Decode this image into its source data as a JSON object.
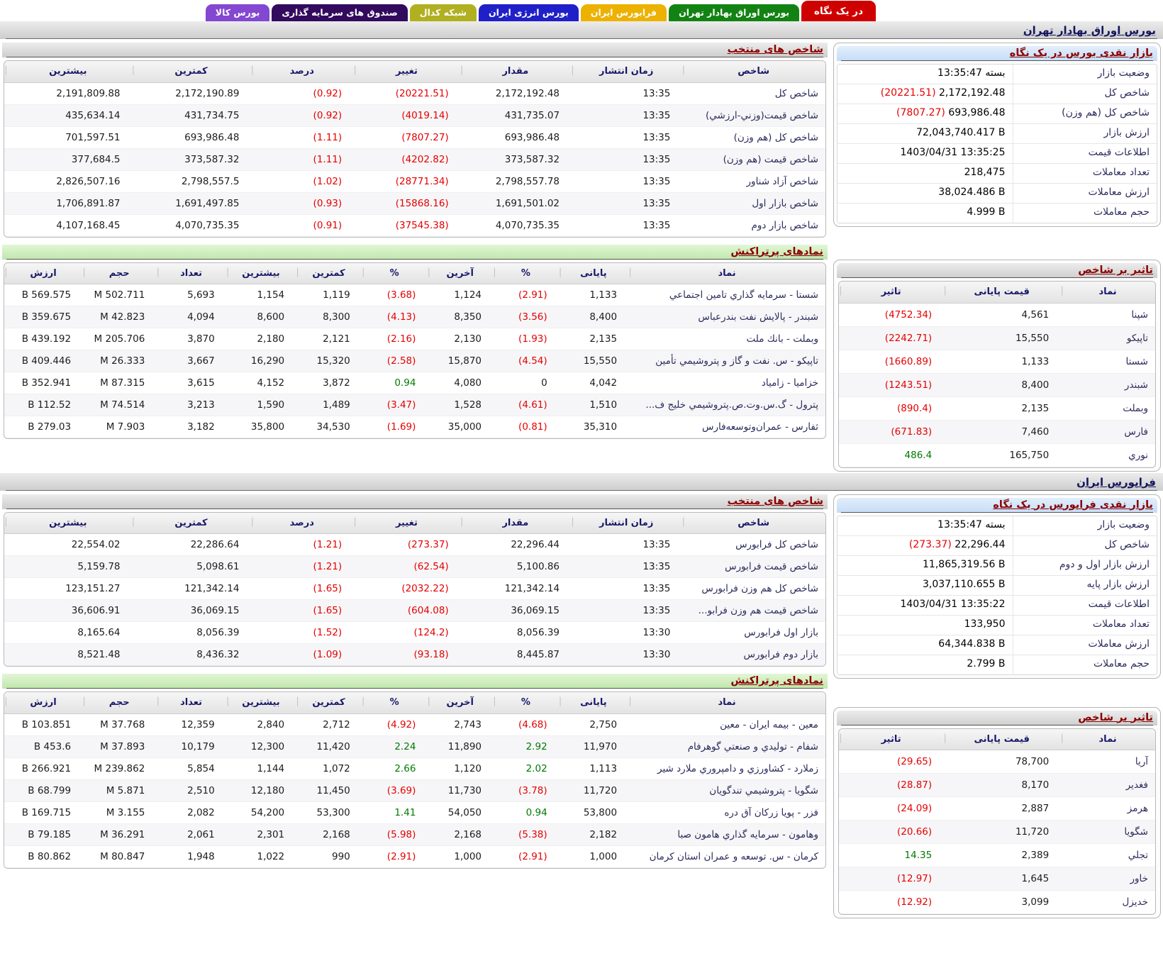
{
  "tabs": [
    {
      "label": "در یک نگاه",
      "color": "#cf0000",
      "active": true
    },
    {
      "label": "بورس اوراق بهادار تهران",
      "color": "#128312",
      "active": false
    },
    {
      "label": "فرابورس ایران",
      "color": "#edb100",
      "active": false
    },
    {
      "label": "بورس انرژی ایران",
      "color": "#2020c8",
      "active": false
    },
    {
      "label": "شبکه کدال",
      "color": "#b0b021",
      "active": false
    },
    {
      "label": "صندوق های سرمایه گذاری",
      "color": "#320a5e",
      "active": false
    },
    {
      "label": "بورس کالا",
      "color": "#8347d1",
      "active": false
    }
  ],
  "colors": {
    "negative": "#e60000",
    "positive": "#007a00",
    "panel_title": "#8b0000"
  },
  "sections": {
    "tse": {
      "title": "بورس اوراق بهادار تهران",
      "glance": {
        "title": "بازار نقدی بورس در یک نگاه",
        "rows": [
          {
            "label": "وضعیت بازار",
            "value": "بسته 13:35:47"
          },
          {
            "label": "شاخص کل",
            "value": "2,172,192.48",
            "extra": "(20221.51)",
            "extra_class": "neg"
          },
          {
            "label": "شاخص کل (هم وزن)",
            "value": "693,986.48",
            "extra": "(7807.27)",
            "extra_class": "neg"
          },
          {
            "label": "ارزش بازار",
            "value": "72,043,740.417 B"
          },
          {
            "label": "اطلاعات قیمت",
            "value": "1403/04/31 13:35:25"
          },
          {
            "label": "تعداد معاملات",
            "value": "218,475"
          },
          {
            "label": "ارزش معاملات",
            "value": "38,024.486 B"
          },
          {
            "label": "حجم معاملات",
            "value": "4.999 B"
          }
        ]
      },
      "indices": {
        "title": "شاخص های منتخب",
        "headers": [
          "شاخص",
          "زمان انتشار",
          "مقدار",
          "تغییر",
          "درصد",
          "کمترین",
          "بیشترین"
        ],
        "rows": [
          [
            "شاخص کل",
            "13:35",
            "2,172,192.48",
            {
              "t": "(20221.51)",
              "c": "neg"
            },
            {
              "t": "(0.92)",
              "c": "neg"
            },
            "2,172,190.89",
            "2,191,809.88"
          ],
          [
            "شاخص قیمت(وزني-ارزشي)",
            "13:35",
            "431,735.07",
            {
              "t": "(4019.14)",
              "c": "neg"
            },
            {
              "t": "(0.92)",
              "c": "neg"
            },
            "431,734.75",
            "435,634.14"
          ],
          [
            "شاخص کل (هم وزن)",
            "13:35",
            "693,986.48",
            {
              "t": "(7807.27)",
              "c": "neg"
            },
            {
              "t": "(1.11)",
              "c": "neg"
            },
            "693,986.48",
            "701,597.51"
          ],
          [
            "شاخص قیمت (هم وزن)",
            "13:35",
            "373,587.32",
            {
              "t": "(4202.82)",
              "c": "neg"
            },
            {
              "t": "(1.11)",
              "c": "neg"
            },
            "373,587.32",
            "377,684.5"
          ],
          [
            "شاخص آزاد شناور",
            "13:35",
            "2,798,557.78",
            {
              "t": "(28771.34)",
              "c": "neg"
            },
            {
              "t": "(1.02)",
              "c": "neg"
            },
            "2,798,557.5",
            "2,826,507.16"
          ],
          [
            "شاخص بازار اول",
            "13:35",
            "1,691,501.02",
            {
              "t": "(15868.16)",
              "c": "neg"
            },
            {
              "t": "(0.93)",
              "c": "neg"
            },
            "1,691,497.85",
            "1,706,891.87"
          ],
          [
            "شاخص بازار دوم",
            "13:35",
            "4,070,735.35",
            {
              "t": "(37545.38)",
              "c": "neg"
            },
            {
              "t": "(0.91)",
              "c": "neg"
            },
            "4,070,735.35",
            "4,107,168.45"
          ]
        ]
      },
      "active": {
        "title": "نمادهای پرتراکنش",
        "headers": [
          "نماد",
          "پایانی",
          "%",
          "آخرین",
          "%",
          "کمترین",
          "بیشترین",
          "تعداد",
          "حجم",
          "ارزش"
        ],
        "rows": [
          [
            "شستا - سرمايه گذاري تامين اجتماعي",
            "1,133",
            {
              "t": "(2.91)",
              "c": "neg"
            },
            "1,124",
            {
              "t": "(3.68)",
              "c": "neg"
            },
            "1,119",
            "1,154",
            "5,693",
            "502.711 M",
            "569.575 B"
          ],
          [
            "شبندر - پالايش نفت بندرعباس",
            "8,400",
            {
              "t": "(3.56)",
              "c": "neg"
            },
            "8,350",
            {
              "t": "(4.13)",
              "c": "neg"
            },
            "8,300",
            "8,600",
            "4,094",
            "42.823 M",
            "359.675 B"
          ],
          [
            "وبملت - بانك ملت",
            "2,135",
            {
              "t": "(1.93)",
              "c": "neg"
            },
            "2,130",
            {
              "t": "(2.16)",
              "c": "neg"
            },
            "2,121",
            "2,180",
            "3,870",
            "205.706 M",
            "439.192 B"
          ],
          [
            "تاپیکو - س. نفت و گاز و پتروشيمي تأمين",
            "15,550",
            {
              "t": "(4.54)",
              "c": "neg"
            },
            "15,870",
            {
              "t": "(2.58)",
              "c": "neg"
            },
            "15,320",
            "16,290",
            "3,667",
            "26.333 M",
            "409.446 B"
          ],
          [
            "خزامیا - زامياد",
            "4,042",
            "0",
            "4,080",
            {
              "t": "0.94",
              "c": "pos"
            },
            "3,872",
            "4,152",
            "3,615",
            "87.315 M",
            "352.941 B"
          ],
          [
            "پترول - گ.س.وت.ص.پتروشيمي خليج ف...",
            "1,510",
            {
              "t": "(4.61)",
              "c": "neg"
            },
            "1,528",
            {
              "t": "(3.47)",
              "c": "neg"
            },
            "1,489",
            "1,590",
            "3,213",
            "74.514 M",
            "112.52 B"
          ],
          [
            "ثفارس - عمران‌وتوسعه‌فارس",
            "35,310",
            {
              "t": "(0.81)",
              "c": "neg"
            },
            "35,000",
            {
              "t": "(1.69)",
              "c": "neg"
            },
            "34,530",
            "35,800",
            "3,182",
            "7.903 M",
            "279.03 B"
          ]
        ]
      },
      "impact": {
        "title": "تاثیر بر شاخص",
        "headers": [
          "نماد",
          "قیمت پایانی",
          "تاثیر"
        ],
        "rows": [
          [
            "شپنا",
            "4,561",
            {
              "t": "(4752.34)",
              "c": "neg"
            }
          ],
          [
            "تاپیکو",
            "15,550",
            {
              "t": "(2242.71)",
              "c": "neg"
            }
          ],
          [
            "شستا",
            "1,133",
            {
              "t": "(1660.89)",
              "c": "neg"
            }
          ],
          [
            "شبندر",
            "8,400",
            {
              "t": "(1243.51)",
              "c": "neg"
            }
          ],
          [
            "وبملت",
            "2,135",
            {
              "t": "(890.4)",
              "c": "neg"
            }
          ],
          [
            "فارس",
            "7,460",
            {
              "t": "(671.83)",
              "c": "neg"
            }
          ],
          [
            "نوري",
            "165,750",
            {
              "t": "486.4",
              "c": "pos"
            }
          ]
        ]
      }
    },
    "ifb": {
      "title": "فرابورس ایران",
      "glance": {
        "title": "بازار نقدی فرابورس در یک نگاه",
        "rows": [
          {
            "label": "وضعیت بازار",
            "value": "بسته 13:35:47"
          },
          {
            "label": "شاخص کل",
            "value": "22,296.44",
            "extra": "(273.37)",
            "extra_class": "neg"
          },
          {
            "label": "ارزش بازار اول و دوم",
            "value": "11,865,319.56 B"
          },
          {
            "label": "ارزش بازار پایه",
            "value": "3,037,110.655 B"
          },
          {
            "label": "اطلاعات قیمت",
            "value": "1403/04/31 13:35:22"
          },
          {
            "label": "تعداد معاملات",
            "value": "133,950"
          },
          {
            "label": "ارزش معاملات",
            "value": "64,344.838 B"
          },
          {
            "label": "حجم معاملات",
            "value": "2.799 B"
          }
        ]
      },
      "indices": {
        "title": "شاخص های منتخب",
        "headers": [
          "شاخص",
          "زمان انتشار",
          "مقدار",
          "تغییر",
          "درصد",
          "کمترین",
          "بیشترین"
        ],
        "rows": [
          [
            "شاخص کل فرابورس",
            "13:35",
            "22,296.44",
            {
              "t": "(273.37)",
              "c": "neg"
            },
            {
              "t": "(1.21)",
              "c": "neg"
            },
            "22,286.64",
            "22,554.02"
          ],
          [
            "شاخص قیمت فرابورس",
            "13:35",
            "5,100.86",
            {
              "t": "(62.54)",
              "c": "neg"
            },
            {
              "t": "(1.21)",
              "c": "neg"
            },
            "5,098.61",
            "5,159.78"
          ],
          [
            "شاخص کل هم وزن فرابورس",
            "13:35",
            "121,342.14",
            {
              "t": "(2032.22)",
              "c": "neg"
            },
            {
              "t": "(1.65)",
              "c": "neg"
            },
            "121,342.14",
            "123,151.27"
          ],
          [
            "شاخص قیمت هم وزن فرابو...",
            "13:35",
            "36,069.15",
            {
              "t": "(604.08)",
              "c": "neg"
            },
            {
              "t": "(1.65)",
              "c": "neg"
            },
            "36,069.15",
            "36,606.91"
          ],
          [
            "بازار اول فرابورس",
            "13:30",
            "8,056.39",
            {
              "t": "(124.2)",
              "c": "neg"
            },
            {
              "t": "(1.52)",
              "c": "neg"
            },
            "8,056.39",
            "8,165.64"
          ],
          [
            "بازار دوم فرابورس",
            "13:30",
            "8,445.87",
            {
              "t": "(93.18)",
              "c": "neg"
            },
            {
              "t": "(1.09)",
              "c": "neg"
            },
            "8,436.32",
            "8,521.48"
          ]
        ]
      },
      "active": {
        "title": "نمادهای پرتراکنش",
        "headers": [
          "نماد",
          "پایانی",
          "%",
          "آخرین",
          "%",
          "کمترین",
          "بیشترین",
          "تعداد",
          "حجم",
          "ارزش"
        ],
        "rows": [
          [
            "معین - بیمه ایران - معین",
            "2,750",
            {
              "t": "(4.68)",
              "c": "neg"
            },
            "2,743",
            {
              "t": "(4.92)",
              "c": "neg"
            },
            "2,712",
            "2,840",
            "12,359",
            "37.768 M",
            "103.851 B"
          ],
          [
            "شفام - تولیدي و صنعتي گوهرفام",
            "11,970",
            {
              "t": "2.92",
              "c": "pos"
            },
            "11,890",
            {
              "t": "2.24",
              "c": "pos"
            },
            "11,420",
            "12,300",
            "10,179",
            "37.893 M",
            "453.6 B"
          ],
          [
            "زملارد - کشاورزي و دامپروري ملارد شیر",
            "1,113",
            {
              "t": "2.02",
              "c": "pos"
            },
            "1,120",
            {
              "t": "2.66",
              "c": "pos"
            },
            "1,072",
            "1,144",
            "5,854",
            "239.862 M",
            "266.921 B"
          ],
          [
            "شگویا - پتروشیمي تندگویان",
            "11,720",
            {
              "t": "(3.78)",
              "c": "neg"
            },
            "11,730",
            {
              "t": "(3.69)",
              "c": "neg"
            },
            "11,450",
            "12,180",
            "2,510",
            "5.871 M",
            "68.799 B"
          ],
          [
            "فزر - پویا زرکان آق دره",
            "53,800",
            {
              "t": "0.94",
              "c": "pos"
            },
            "54,050",
            {
              "t": "1.41",
              "c": "pos"
            },
            "53,300",
            "54,200",
            "2,082",
            "3.155 M",
            "169.715 B"
          ],
          [
            "وهامون - سرمایه گذاري هامون صبا",
            "2,182",
            {
              "t": "(5.38)",
              "c": "neg"
            },
            "2,168",
            {
              "t": "(5.98)",
              "c": "neg"
            },
            "2,168",
            "2,301",
            "2,061",
            "36.291 M",
            "79.185 B"
          ],
          [
            "کرمان - س. توسعه و عمران استان کرمان",
            "1,000",
            {
              "t": "(2.91)",
              "c": "neg"
            },
            "1,000",
            {
              "t": "(2.91)",
              "c": "neg"
            },
            "990",
            "1,022",
            "1,948",
            "80.847 M",
            "80.862 B"
          ]
        ]
      },
      "impact": {
        "title": "تاثیر بر شاخص",
        "headers": [
          "نماد",
          "قیمت پایانی",
          "تاثیر"
        ],
        "rows": [
          [
            "آریا",
            "78,700",
            {
              "t": "(29.65)",
              "c": "neg"
            }
          ],
          [
            "فغدیر",
            "8,170",
            {
              "t": "(28.87)",
              "c": "neg"
            }
          ],
          [
            "هرمز",
            "2,887",
            {
              "t": "(24.09)",
              "c": "neg"
            }
          ],
          [
            "شگویا",
            "11,720",
            {
              "t": "(20.66)",
              "c": "neg"
            }
          ],
          [
            "تجلي",
            "2,389",
            {
              "t": "14.35",
              "c": "pos"
            }
          ],
          [
            "خاور",
            "1,645",
            {
              "t": "(12.97)",
              "c": "neg"
            }
          ],
          [
            "خدیزل",
            "3,099",
            {
              "t": "(12.92)",
              "c": "neg"
            }
          ]
        ]
      }
    }
  }
}
